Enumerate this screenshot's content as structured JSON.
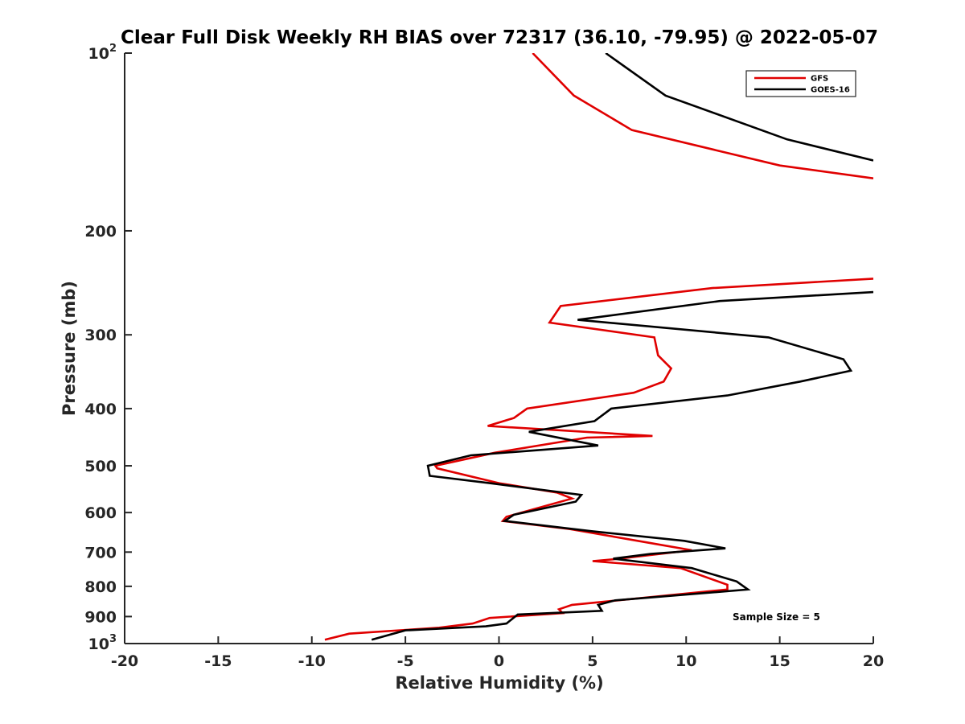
{
  "chart_data": {
    "type": "line",
    "title": "Clear Full Disk Weekly RH BIAS over 72317 (36.10, -79.95) @ 2022-05-07",
    "xlabel": "Relative Humidity (%)",
    "ylabel": "Pressure (mb)",
    "xlim": [
      -20,
      20
    ],
    "ylim": [
      100,
      1000
    ],
    "y_scale": "log",
    "y_reversed": true,
    "grid": false,
    "legend_position": "top-right",
    "x_ticks": [
      "-20",
      "-15",
      "-10",
      "-5",
      "0",
      "5",
      "10",
      "15",
      "20"
    ],
    "y_ticks": [
      {
        "value": 100,
        "base": "10",
        "exp": "2"
      },
      {
        "value": 200,
        "label": "200"
      },
      {
        "value": 300,
        "label": "300"
      },
      {
        "value": 400,
        "label": "400"
      },
      {
        "value": 500,
        "label": "500"
      },
      {
        "value": 600,
        "label": "600"
      },
      {
        "value": 700,
        "label": "700"
      },
      {
        "value": 800,
        "label": "800"
      },
      {
        "value": 900,
        "label": "900"
      },
      {
        "value": 1000,
        "base": "10",
        "exp": "3"
      }
    ],
    "annotation": "Sample Size = 5",
    "series": [
      {
        "name": "GFS",
        "color": "#e00000",
        "segments": [
          [
            [
              1.8,
              100
            ],
            [
              4,
              118
            ],
            [
              7.1,
              135
            ],
            [
              15,
              155
            ],
            [
              20,
              163
            ]
          ],
          [
            [
              20,
              241
            ],
            [
              11.4,
              250
            ],
            [
              3.3,
              268
            ],
            [
              2.7,
              286
            ],
            [
              8.3,
              303
            ],
            [
              8.5,
              325
            ],
            [
              9.2,
              342
            ],
            [
              8.8,
              360
            ],
            [
              7.2,
              376
            ],
            [
              1.5,
              400
            ],
            [
              0.8,
              415
            ],
            [
              -0.6,
              428
            ],
            [
              8.2,
              445
            ],
            [
              4.7,
              448
            ],
            [
              -0.2,
              475
            ],
            [
              -3.4,
              500
            ],
            [
              -3.3,
              505
            ],
            [
              0,
              535
            ],
            [
              3.1,
              555
            ],
            [
              3.9,
              568
            ],
            [
              0.4,
              610
            ],
            [
              0.2,
              620
            ],
            [
              3.8,
              640
            ],
            [
              8,
              675
            ],
            [
              10.3,
              695
            ],
            [
              6.1,
              720
            ],
            [
              5,
              725
            ],
            [
              9.7,
              745
            ],
            [
              12.2,
              795
            ],
            [
              12.2,
              810
            ],
            [
              3.9,
              860
            ],
            [
              3.2,
              875
            ],
            [
              3.4,
              888
            ],
            [
              -0.5,
              905
            ],
            [
              -1.4,
              925
            ],
            [
              -3.2,
              940
            ],
            [
              -8,
              962
            ],
            [
              -9.3,
              985
            ]
          ]
        ]
      },
      {
        "name": "GOES-16",
        "color": "#000000",
        "segments": [
          [
            [
              5.7,
              100
            ],
            [
              8.9,
              118
            ],
            [
              15.4,
              140
            ],
            [
              20,
              152
            ]
          ],
          [
            [
              20,
              254
            ],
            [
              11.8,
              263
            ],
            [
              4.2,
              283
            ],
            [
              14.4,
              303
            ],
            [
              18.4,
              330
            ],
            [
              18.8,
              345
            ],
            [
              16.1,
              360
            ],
            [
              12.2,
              380
            ],
            [
              6,
              400
            ],
            [
              5.1,
              420
            ],
            [
              1.6,
              438
            ],
            [
              5.3,
              462
            ],
            [
              -1.5,
              480
            ],
            [
              -3.8,
              500
            ],
            [
              -3.7,
              520
            ],
            [
              -0.5,
              535
            ],
            [
              4.4,
              560
            ],
            [
              4.1,
              575
            ],
            [
              0.8,
              605
            ],
            [
              0.3,
              620
            ],
            [
              4.9,
              645
            ],
            [
              9.9,
              670
            ],
            [
              12.1,
              690
            ],
            [
              8.1,
              705
            ],
            [
              6.1,
              718
            ],
            [
              10.3,
              745
            ],
            [
              12.7,
              785
            ],
            [
              13.3,
              810
            ],
            [
              6.2,
              845
            ],
            [
              5.3,
              860
            ],
            [
              5.5,
              880
            ],
            [
              1,
              893
            ],
            [
              0.4,
              925
            ],
            [
              -0.7,
              935
            ],
            [
              -5,
              950
            ],
            [
              -6.8,
              985
            ]
          ]
        ]
      }
    ]
  }
}
